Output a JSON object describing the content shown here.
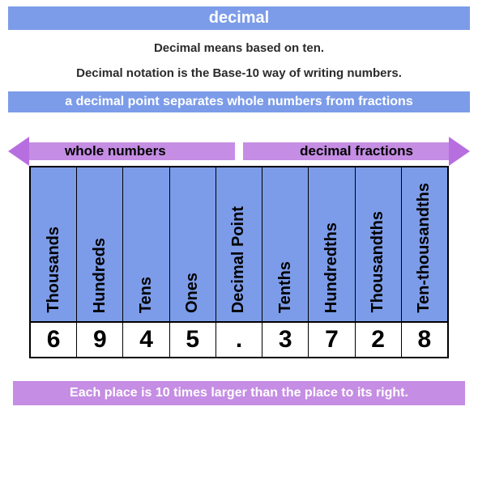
{
  "colors": {
    "blue": "#7c9ce9",
    "purple": "#b76fe0",
    "purple_light": "#c58de3",
    "white": "#ffffff",
    "black": "#000000",
    "text_dark": "#2b2b2b"
  },
  "title": "decimal",
  "intro_line1": "Decimal means based on ten.",
  "intro_line2": "Decimal notation is the Base-10 way of writing numbers.",
  "separator_text": "a decimal point separates whole numbers from fractions",
  "arrow_left_label": "whole numbers",
  "arrow_right_label": "decimal fractions",
  "footer_text": "Each place is 10 times larger than the place to its right.",
  "title_fontsize": 20,
  "intro_fontsize": 15,
  "subbar_fontsize": 16,
  "arrow_label_fontsize": 17,
  "header_fontsize": 20,
  "value_fontsize": 30,
  "footer_fontsize": 16,
  "columns": [
    {
      "label": "Thousands",
      "value": "6"
    },
    {
      "label": "Hundreds",
      "value": "9"
    },
    {
      "label": "Tens",
      "value": "4"
    },
    {
      "label": "Ones",
      "value": "5"
    },
    {
      "label": "Decimal Point",
      "value": "."
    },
    {
      "label": "Tenths",
      "value": "3"
    },
    {
      "label": "Hundredths",
      "value": "7"
    },
    {
      "label": "Thousandths",
      "value": "2"
    },
    {
      "label": "Ten-thousandths",
      "value": "8"
    }
  ]
}
